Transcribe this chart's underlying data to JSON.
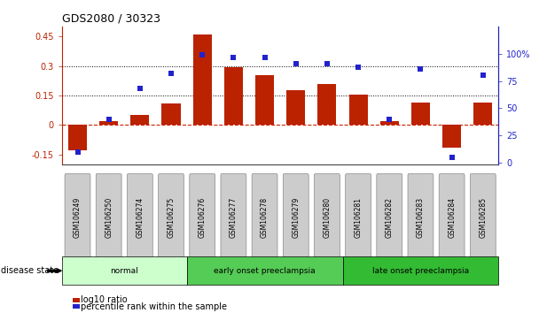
{
  "title": "GDS2080 / 30323",
  "samples": [
    "GSM106249",
    "GSM106250",
    "GSM106274",
    "GSM106275",
    "GSM106276",
    "GSM106277",
    "GSM106278",
    "GSM106279",
    "GSM106280",
    "GSM106281",
    "GSM106282",
    "GSM106283",
    "GSM106284",
    "GSM106285"
  ],
  "log10_ratio": [
    -0.13,
    0.02,
    0.05,
    0.11,
    0.46,
    0.295,
    0.255,
    0.175,
    0.21,
    0.155,
    0.02,
    0.115,
    -0.115,
    0.115
  ],
  "percentile_rank": [
    10,
    40,
    68,
    82,
    99,
    97,
    97,
    91,
    91,
    88,
    40,
    86,
    5,
    80
  ],
  "groups": [
    {
      "label": "normal",
      "start": 0,
      "end": 4,
      "color": "#ccffcc"
    },
    {
      "label": "early onset preeclampsia",
      "start": 4,
      "end": 9,
      "color": "#55cc55"
    },
    {
      "label": "late onset preeclampsia",
      "start": 9,
      "end": 14,
      "color": "#33bb33"
    }
  ],
  "bar_color": "#bb2200",
  "dot_color": "#2222cc",
  "ylim_left": [
    -0.2,
    0.5
  ],
  "ylim_right": [
    -1.5625,
    125
  ],
  "yticks_left": [
    -0.15,
    0.0,
    0.15,
    0.3,
    0.45
  ],
  "ytick_labels_left": [
    "-0.15",
    "0",
    "0.15",
    "0.3",
    "0.45"
  ],
  "yticks_right": [
    0,
    25,
    50,
    75,
    100
  ],
  "ytick_labels_right": [
    "0",
    "25",
    "50",
    "75",
    "100%"
  ],
  "hlines_dotted": [
    0.15,
    0.3
  ],
  "hline_zero_color": "#cc2200",
  "legend_bar_label": "log10 ratio",
  "legend_dot_label": "percentile rank within the sample",
  "disease_label": "disease state",
  "background_color": "#ffffff",
  "tick_bg_color": "#cccccc",
  "tick_edge_color": "#888888"
}
